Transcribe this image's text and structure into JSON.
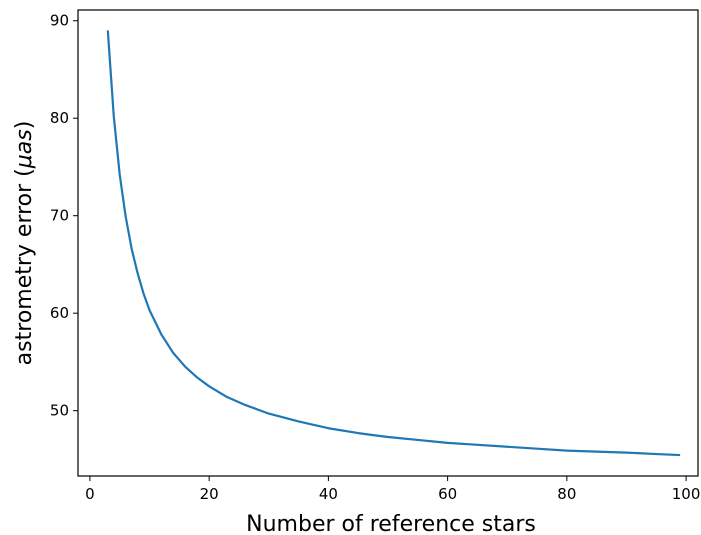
{
  "chart_data": {
    "type": "line",
    "title": "",
    "xlabel": "Number of reference stars",
    "ylabel": {
      "prefix": "astrometry error (",
      "unit": "μas",
      "suffix": ")"
    },
    "xlim": [
      -2,
      102
    ],
    "ylim": [
      43.3,
      91.1
    ],
    "xticks": [
      0,
      20,
      40,
      60,
      80,
      100
    ],
    "yticks": [
      50,
      60,
      70,
      80,
      90
    ],
    "grid": false,
    "series": [
      {
        "color": "#1f77b4",
        "x": [
          3,
          4,
          5,
          6,
          7,
          8,
          9,
          10,
          12,
          14,
          16,
          18,
          20,
          23,
          26,
          30,
          35,
          40,
          45,
          50,
          55,
          60,
          65,
          70,
          75,
          80,
          85,
          90,
          95,
          99
        ],
        "y": [
          89.0,
          80.2,
          74.2,
          69.9,
          66.6,
          64.1,
          62.0,
          60.3,
          57.8,
          55.9,
          54.5,
          53.4,
          52.5,
          51.4,
          50.6,
          49.7,
          48.9,
          48.2,
          47.7,
          47.3,
          47.0,
          46.7,
          46.5,
          46.3,
          46.1,
          45.9,
          45.8,
          45.7,
          45.55,
          45.45
        ]
      }
    ]
  }
}
